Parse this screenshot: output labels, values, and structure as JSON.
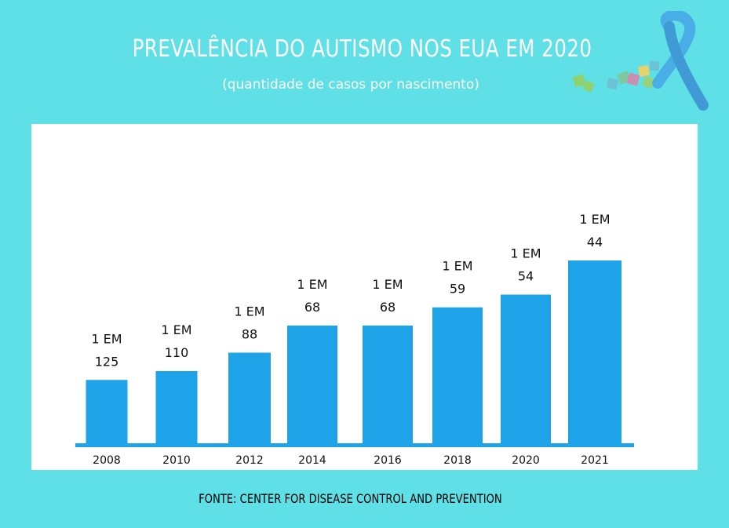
{
  "chart_data": {
    "type": "bar",
    "title": "PREVALÊNCIA DO  AUTISMO NOS EUA EM 2020",
    "subtitle": "(quantidade de casos por nascimento)",
    "categories": [
      "2008",
      "2010",
      "2012",
      "2014",
      "2016",
      "2018",
      "2020",
      "2021"
    ],
    "values": [
      125,
      110,
      88,
      68,
      68,
      59,
      54,
      44
    ],
    "label_prefix": "1 EM",
    "xlabel": "",
    "ylabel": "",
    "bar_color": "#1fa3e8",
    "axis_color": "#1fa3e8"
  },
  "source": "FONTE: CENTER FOR DISEASE CONTROL AND PREVENTION",
  "colors": {
    "background": "#5ee0e6",
    "panel": "#ffffff",
    "ribbon": "#4aaee6",
    "puzzle": [
      "#7fc9a1",
      "#c98fb0",
      "#9ad27a",
      "#e8d36a",
      "#6cc3d5"
    ]
  }
}
